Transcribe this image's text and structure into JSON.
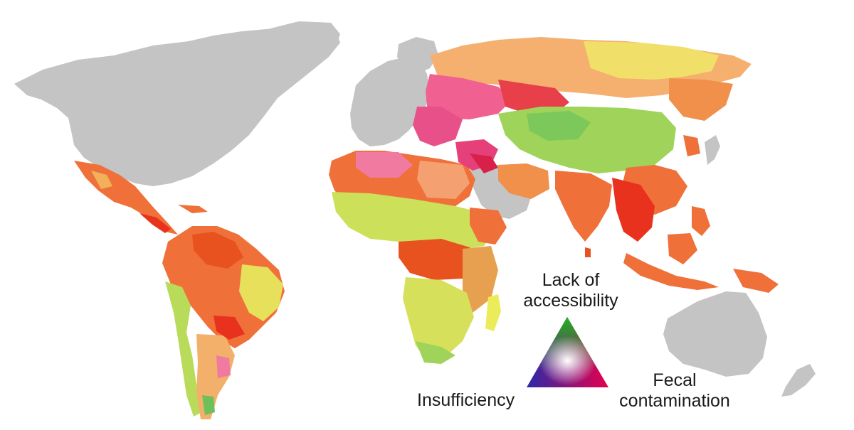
{
  "map": {
    "colors": {
      "ocean": "#ffffff",
      "no_data_land": "#c4c4c4",
      "lack_of_accessibility": "#3cb043",
      "fecal_contamination": "#e6004c",
      "insufficiency": "#2a2aa8",
      "mixed_orange": "#f0703a",
      "mixed_red": "#e8321e",
      "mixed_yellow": "#ecec5a",
      "mixed_lightgreen": "#b8dc5a",
      "mixed_pink": "#f07aa0",
      "mixed_salmon": "#f5a070"
    },
    "no_data_regions": [
      "North America",
      "Greenland",
      "Western Europe",
      "Arabian Peninsula",
      "Australia",
      "New Zealand"
    ]
  },
  "legend": {
    "type": "ternary-color-triangle",
    "top_vertex": {
      "line1": "Lack of",
      "line2": "accessibility",
      "color": "#1db31d"
    },
    "right_vertex": {
      "line1": "Fecal",
      "line2": "contamination",
      "color": "#e0002a"
    },
    "left_vertex": {
      "label": "Insufficiency",
      "color": "#2020c0"
    }
  }
}
